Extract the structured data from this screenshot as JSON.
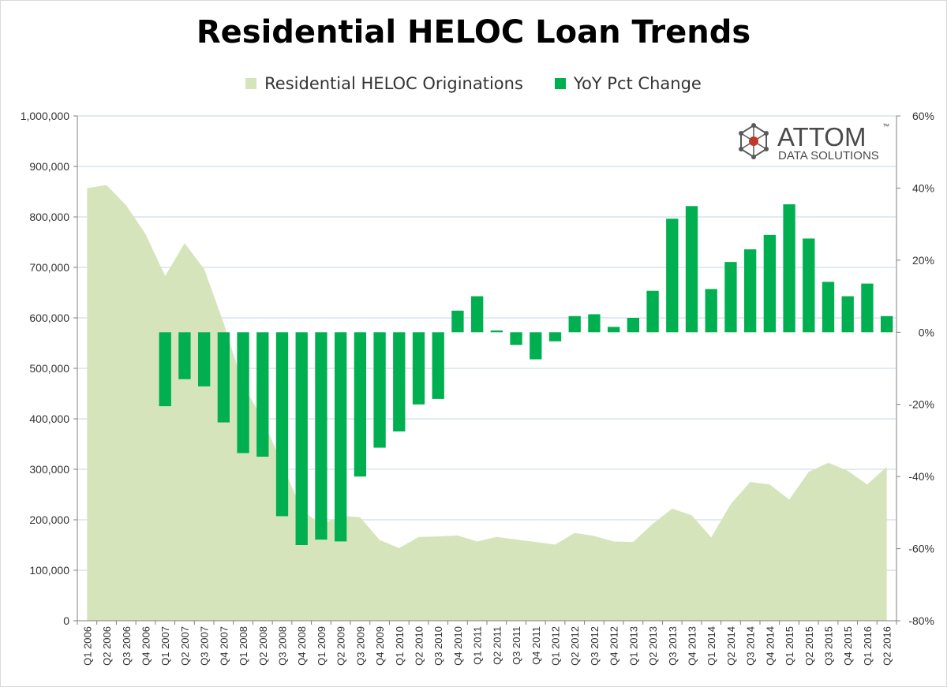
{
  "chart_data": {
    "type": "bar",
    "title": "Residential HELOC Loan Trends",
    "legend_position": "top",
    "categories": [
      "Q1 2006",
      "Q2 2006",
      "Q3 2006",
      "Q4 2006",
      "Q1 2007",
      "Q2 2007",
      "Q3 2007",
      "Q4 2007",
      "Q1 2008",
      "Q2 2008",
      "Q3 2008",
      "Q4 2008",
      "Q1 2009",
      "Q2 2009",
      "Q3 2009",
      "Q4 2009",
      "Q1 2010",
      "Q2 2010",
      "Q3 2010",
      "Q4 2010",
      "Q1 2011",
      "Q2 2011",
      "Q3 2011",
      "Q4 2011",
      "Q1 2012",
      "Q2 2012",
      "Q3 2012",
      "Q4 2012",
      "Q1 2013",
      "Q2 2013",
      "Q3 2013",
      "Q4 2013",
      "Q1 2014",
      "Q2 2014",
      "Q3 2014",
      "Q4 2014",
      "Q1 2015",
      "Q2 2015",
      "Q3 2015",
      "Q4 2015",
      "Q1 2016",
      "Q2 2016"
    ],
    "series": [
      {
        "name": "Residential HELOC Originations",
        "type": "area",
        "axis": "left",
        "color": "#d6e4bc",
        "values": [
          857000,
          863000,
          823000,
          766000,
          683000,
          748000,
          697000,
          590000,
          467000,
          400000,
          310000,
          220000,
          190000,
          208000,
          205000,
          160000,
          144000,
          166000,
          167000,
          169000,
          157000,
          166000,
          161000,
          156000,
          151000,
          174000,
          168000,
          157000,
          156000,
          192000,
          222000,
          209000,
          165000,
          231000,
          275000,
          270000,
          240000,
          295000,
          313000,
          297000,
          270000,
          305000
        ]
      },
      {
        "name": "YoY Pct Change",
        "type": "bar",
        "axis": "right",
        "color": "#00b050",
        "values": [
          null,
          null,
          null,
          null,
          -20.5,
          -13.0,
          -15.0,
          -25.0,
          -33.5,
          -34.5,
          -51.0,
          -59.0,
          -57.5,
          -58.0,
          -40.0,
          -32.0,
          -27.5,
          -20.0,
          -18.5,
          6.0,
          10.0,
          0.5,
          -3.5,
          -7.5,
          -2.5,
          4.5,
          5.0,
          1.5,
          4.0,
          11.5,
          31.5,
          35.0,
          12.0,
          19.5,
          23.0,
          27.0,
          35.5,
          26.0,
          14.0,
          10.0,
          13.5,
          4.5
        ]
      }
    ],
    "y_left": {
      "ylim": [
        0,
        1000000
      ],
      "ticks": [
        "0",
        "100,000",
        "200,000",
        "300,000",
        "400,000",
        "500,000",
        "600,000",
        "700,000",
        "800,000",
        "900,000",
        "1,000,000"
      ]
    },
    "y_right": {
      "ylim": [
        -80,
        60
      ],
      "ticks": [
        "-80%",
        "-60%",
        "-40%",
        "-20%",
        "0%",
        "20%",
        "40%",
        "60%"
      ]
    },
    "grid": true
  },
  "logo": {
    "name": "ATTOM",
    "tagline": "DATA SOLUTIONS",
    "mark": "™",
    "icon": "network-molecule-icon"
  }
}
